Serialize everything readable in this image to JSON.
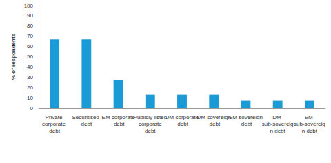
{
  "chart_data": {
    "type": "bar",
    "ylabel": "% of respondents",
    "categories": [
      "Private corporate debt",
      "Securitised debt",
      "EM corporate debt",
      "Publicly listed corporate debt",
      "DM corporate debt",
      "DM sovereign debt",
      "EM sovereign debt",
      "DM sub-sovereign debt",
      "EM sub-sovereign debt"
    ],
    "values": [
      67,
      67,
      27,
      13,
      13,
      13,
      7,
      7,
      7
    ],
    "color": "#1a9bd7",
    "ylim": [
      0,
      100
    ],
    "yticks": [
      0,
      10,
      20,
      30,
      40,
      50,
      60,
      70,
      80,
      90,
      100
    ],
    "grid": false
  }
}
